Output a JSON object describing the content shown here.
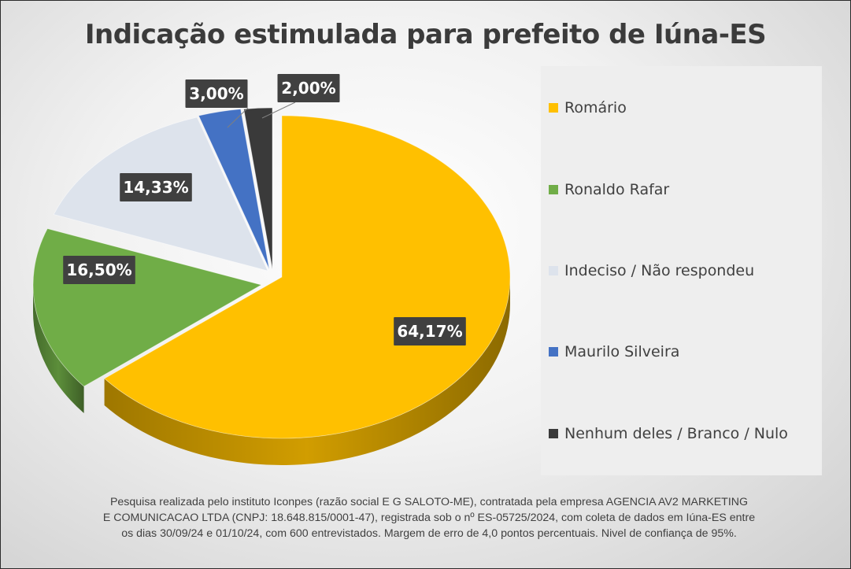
{
  "chart_data": {
    "type": "pie",
    "title": "Indicação estimulada para prefeito de Iúna-ES",
    "slices": [
      {
        "name": "Romário",
        "value": 64.17,
        "label": "64,17%",
        "color": "#FFC000"
      },
      {
        "name": "Ronaldo Rafar",
        "value": 16.5,
        "label": "16,50%",
        "color": "#70AD47"
      },
      {
        "name": "Indeciso / Não respondeu",
        "value": 14.33,
        "label": "14,33%",
        "color": "#DDE3EC"
      },
      {
        "name": "Maurilo Silveira",
        "value": 3.0,
        "label": "3,00%",
        "color": "#4472C4"
      },
      {
        "name": "Nenhum deles / Branco / Nulo",
        "value": 2.0,
        "label": "2,00%",
        "color": "#3A3A3A"
      }
    ],
    "legend_position": "right"
  },
  "footnote": {
    "lines": [
      "Pesquisa realizada pelo instituto Iconpes (razão social E G SALOTO-ME), contratada pela empresa AGENCIA AV2 MARKETING",
      "E COMUNICACAO LTDA (CNPJ: 18.648.815/0001-47), registrada sob o nº ES-05725/2024, com coleta de dados em Iúna-ES entre",
      "os dias 30/09/24 e 01/10/24, com 600 entrevistados. Margem de erro de 4,0 pontos percentuais. Nivel de confiança de 95%."
    ]
  }
}
